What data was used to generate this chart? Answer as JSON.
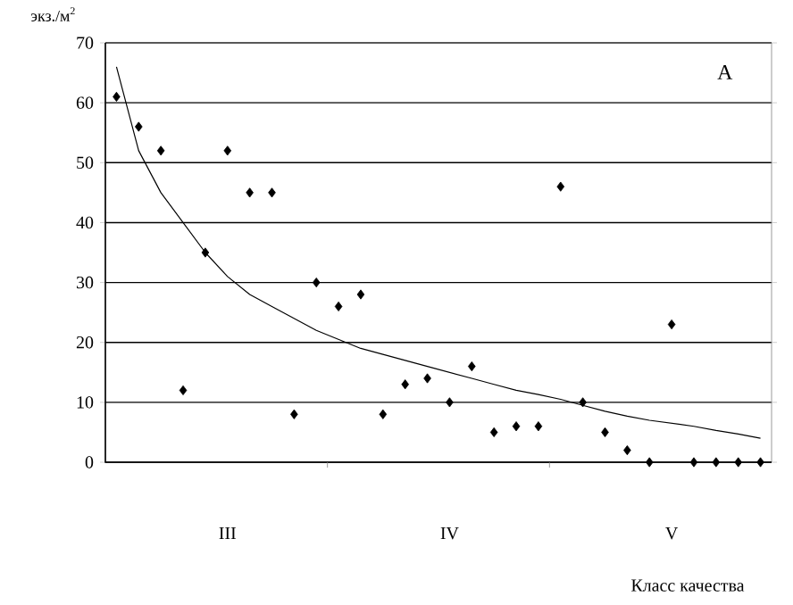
{
  "chart_data": {
    "type": "scatter",
    "ylabel": "экз./м$^{2}$",
    "xlabel": "Класс качества",
    "annotations": [
      "А"
    ],
    "categories": [
      null,
      null,
      null,
      null,
      null,
      "III",
      null,
      null,
      null,
      null,
      null,
      null,
      null,
      null,
      null,
      "IV",
      null,
      null,
      null,
      null,
      null,
      null,
      null,
      null,
      null,
      "V",
      null,
      null,
      null,
      null
    ],
    "ylim": [
      0,
      70
    ],
    "yticks": [
      0,
      10,
      20,
      30,
      40,
      50,
      60,
      70
    ],
    "grid": "y",
    "series": [
      {
        "color": "#000000",
        "marker": "diamond",
        "values": [
          61,
          56,
          52,
          12,
          35,
          52,
          45,
          45,
          8,
          30,
          26,
          28,
          8,
          13,
          14,
          10,
          16,
          5,
          6,
          6,
          46,
          10,
          5,
          2,
          0,
          23,
          0,
          0,
          0,
          0
        ]
      },
      {
        "type": "line",
        "color": "#000000",
        "marker": "none",
        "line_style": "solid",
        "values": [
          66,
          52,
          45,
          40,
          35,
          31,
          28,
          26,
          24,
          22,
          20.5,
          19,
          18,
          17,
          16,
          15,
          14,
          13,
          12,
          11.3,
          10.5,
          9.5,
          8.5,
          7.7,
          7,
          6.5,
          6,
          5.3,
          4.7,
          4
        ]
      }
    ]
  }
}
